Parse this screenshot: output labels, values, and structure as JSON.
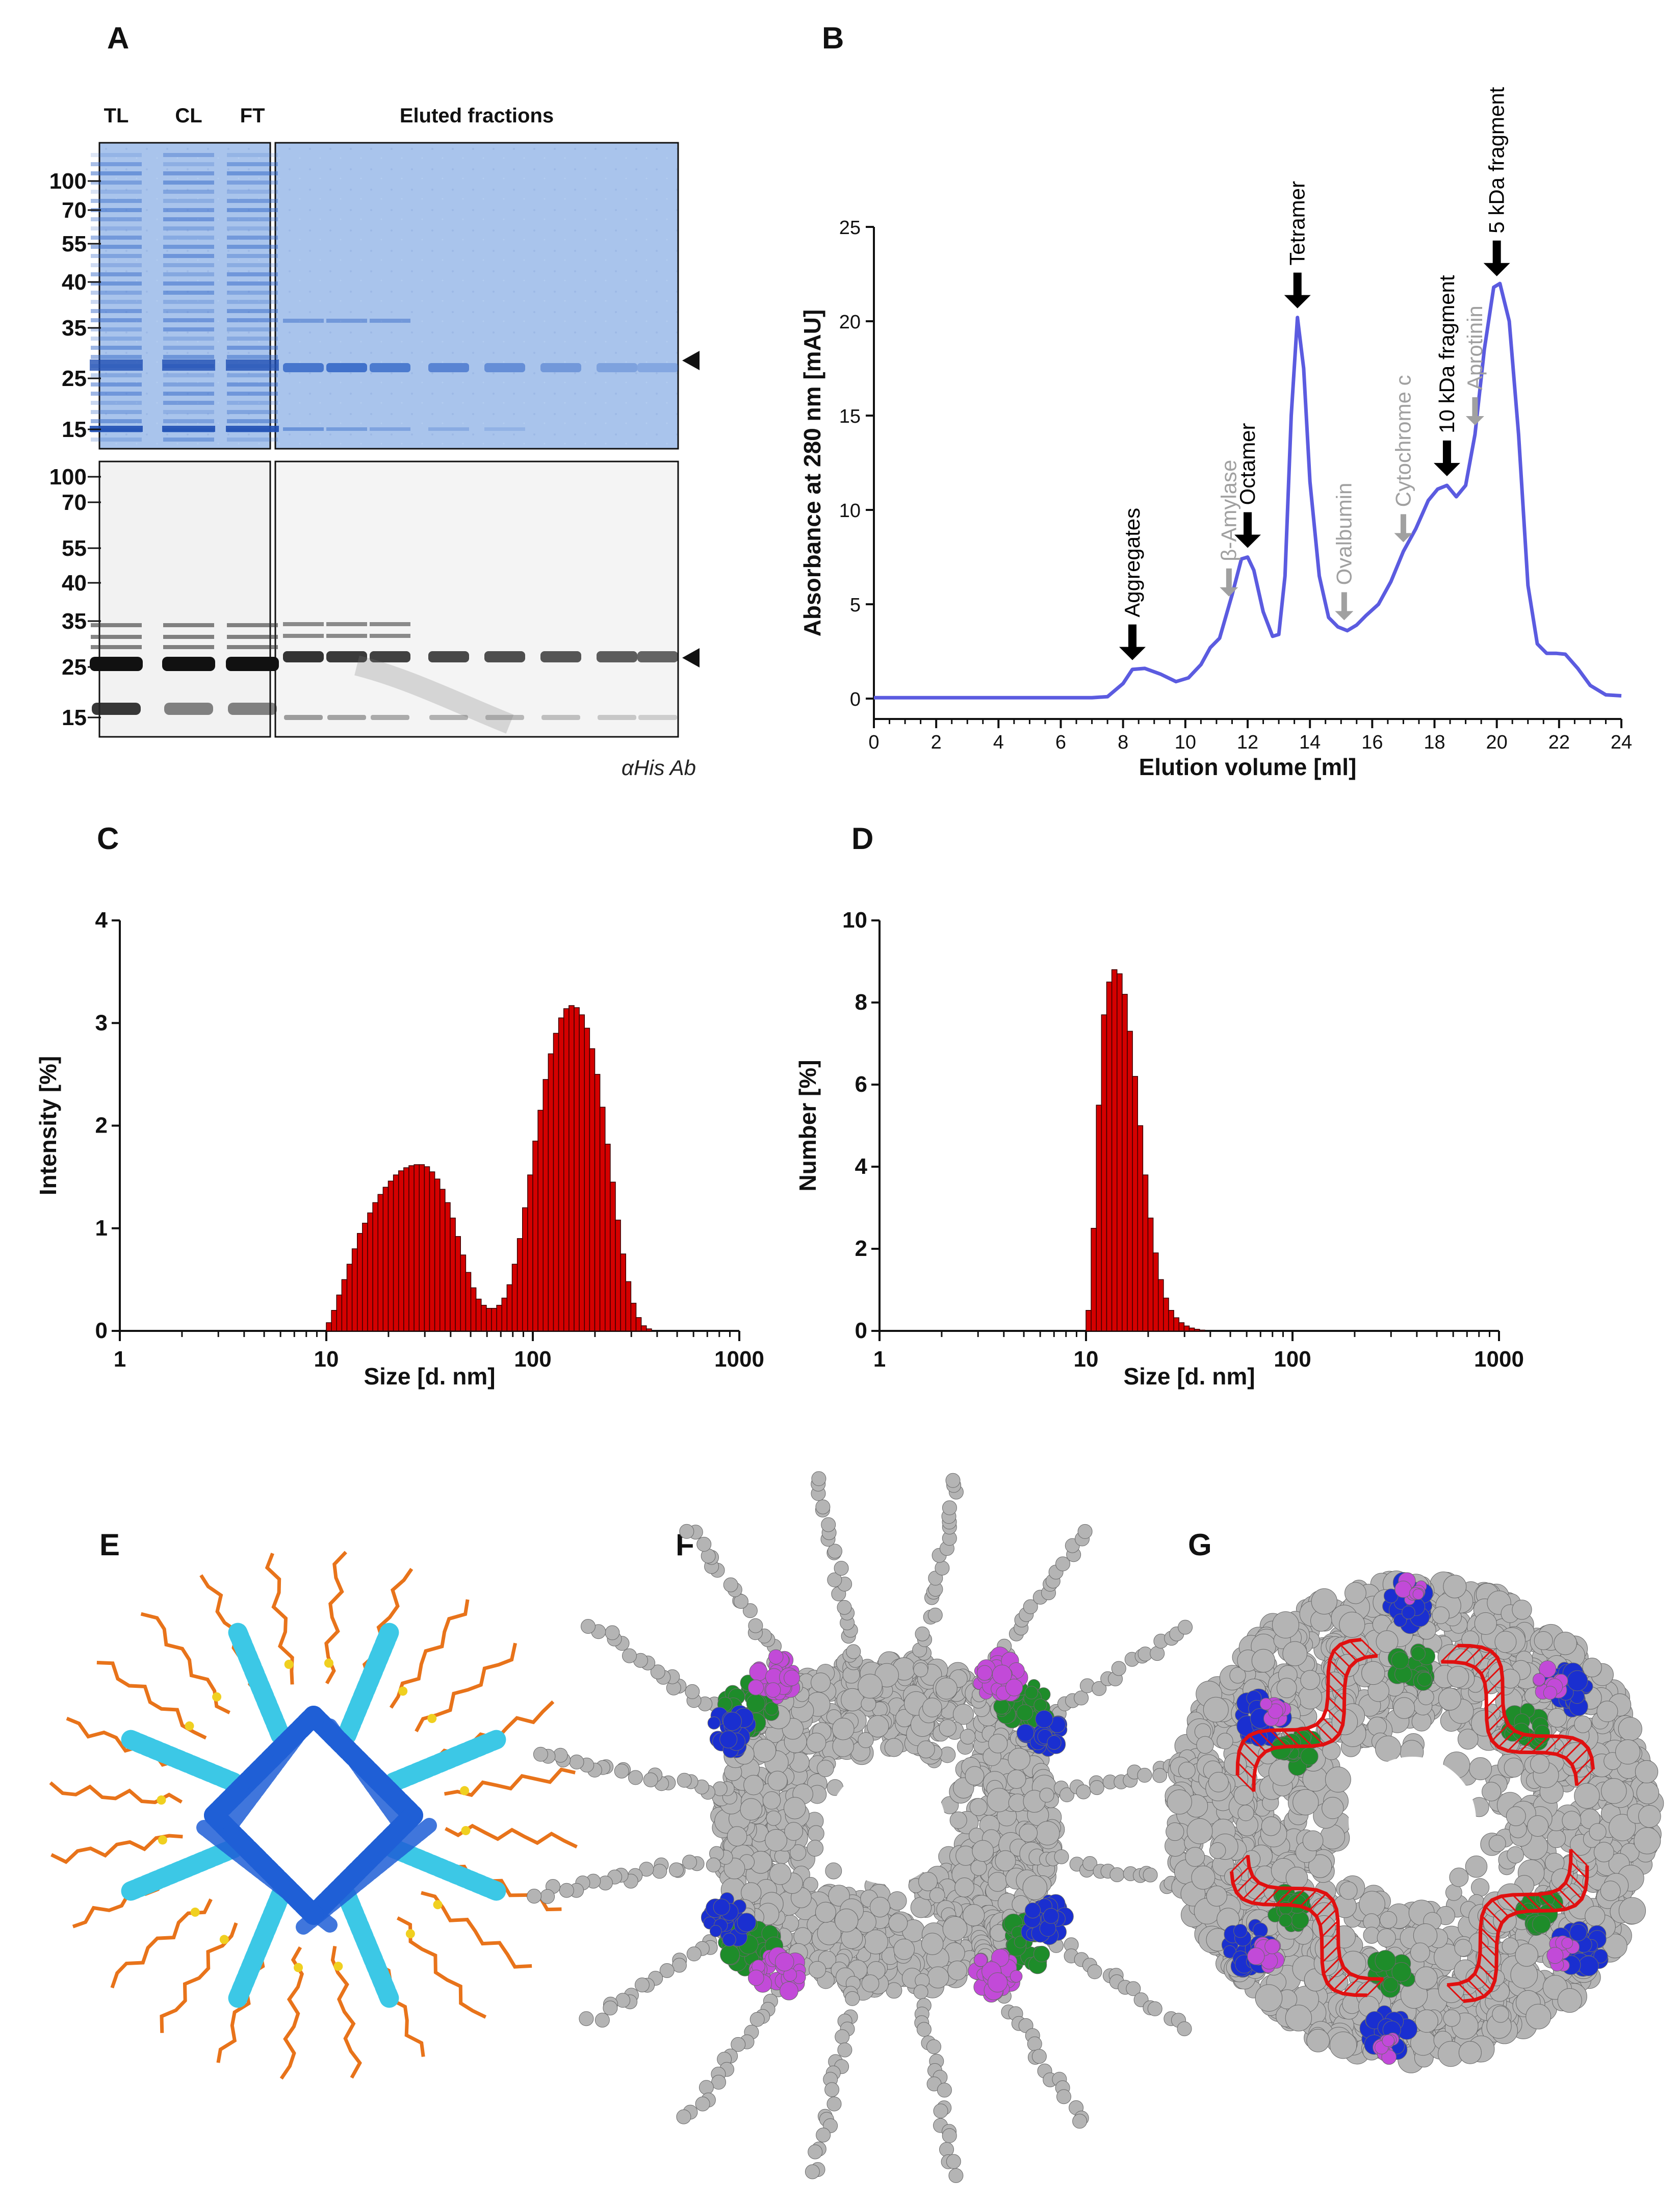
{
  "panels": {
    "A": {
      "label": "A",
      "lanes": [
        "TL",
        "CL",
        "FT"
      ],
      "eluted_label": "Eluted fractions",
      "mw_top": [
        "100",
        "70",
        "55",
        "40",
        "35",
        "25",
        "15"
      ],
      "mw_bottom": [
        "100",
        "70",
        "55",
        "40",
        "35",
        "25",
        "15"
      ],
      "western_caption": "αHis Ab"
    },
    "B": {
      "label": "B"
    },
    "C": {
      "label": "C"
    },
    "D": {
      "label": "D"
    },
    "E": {
      "label": "E"
    },
    "F": {
      "label": "F"
    },
    "G": {
      "label": "G"
    }
  },
  "colors": {
    "trace": "#5b5be0",
    "hist": "#d40000",
    "black_arrow": "#000000",
    "gray_arrow": "#a0a0a0",
    "gel_blue": "#a9c4ec",
    "band_blue": "#2e63c6",
    "helix_dark": "#1f5fd6",
    "helix_cyan": "#3cc8e6",
    "coil_orange": "#e8731a",
    "atom_gray": "#b4b4b4",
    "atom_blue": "#1a2fd0",
    "atom_green": "#1e8c2a",
    "atom_magenta": "#c24ad8",
    "rna_red": "#e01010"
  },
  "chart_data": [
    {
      "panel": "B",
      "type": "line",
      "xlabel": "Elution volume [ml]",
      "ylabel": "Absorbance at 280 nm [mAU]",
      "xlim": [
        0,
        24
      ],
      "ylim": [
        0,
        25
      ],
      "xticks": [
        "0",
        "2",
        "4",
        "6",
        "8",
        "10",
        "12",
        "14",
        "16",
        "18",
        "20",
        "22",
        "24"
      ],
      "yticks": [
        "0",
        "5",
        "10",
        "15",
        "20",
        "25"
      ],
      "series": [
        {
          "name": "A280",
          "x": [
            0,
            7,
            7.5,
            8,
            8.3,
            8.7,
            9.2,
            9.7,
            10.1,
            10.5,
            10.8,
            11.1,
            11.5,
            11.8,
            12.0,
            12.2,
            12.5,
            12.8,
            13.0,
            13.2,
            13.4,
            13.6,
            13.8,
            14.0,
            14.3,
            14.6,
            14.9,
            15.2,
            15.5,
            15.8,
            16.2,
            16.6,
            17.0,
            17.4,
            17.8,
            18.1,
            18.4,
            18.7,
            19.0,
            19.3,
            19.6,
            19.9,
            20.1,
            20.4,
            20.7,
            21.0,
            21.3,
            21.6,
            21.9,
            22.2,
            22.6,
            23.0,
            23.5,
            24.0
          ],
          "y": [
            0.05,
            0.05,
            0.1,
            0.8,
            1.55,
            1.6,
            1.3,
            0.9,
            1.1,
            1.8,
            2.7,
            3.2,
            5.5,
            7.4,
            7.5,
            6.8,
            4.6,
            3.3,
            3.4,
            6.5,
            15.0,
            20.2,
            17.5,
            11.5,
            6.5,
            4.3,
            3.8,
            3.6,
            3.9,
            4.4,
            5.0,
            6.2,
            7.8,
            9.0,
            10.5,
            11.1,
            11.3,
            10.7,
            11.3,
            14.0,
            18.5,
            21.8,
            22.0,
            20.0,
            14.0,
            6.0,
            2.9,
            2.4,
            2.4,
            2.35,
            1.6,
            0.7,
            0.2,
            0.15
          ]
        }
      ],
      "annotations": [
        {
          "text": "Aggregates",
          "x": 8.3,
          "color": "black"
        },
        {
          "text": "β-Amylase",
          "x": 11.4,
          "color": "gray"
        },
        {
          "text": "Octamer",
          "x": 12.0,
          "color": "black"
        },
        {
          "text": "Tetramer",
          "x": 13.6,
          "color": "black"
        },
        {
          "text": "Ovalbumin",
          "x": 15.1,
          "color": "gray"
        },
        {
          "text": "Cytochrome c",
          "x": 17.0,
          "color": "gray"
        },
        {
          "text": "10 kDa fragment",
          "x": 18.4,
          "color": "black"
        },
        {
          "text": "Aprotinin",
          "x": 19.3,
          "color": "gray"
        },
        {
          "text": "5 kDa fragment",
          "x": 20.0,
          "color": "black"
        }
      ]
    },
    {
      "panel": "C",
      "type": "bar",
      "xscale": "log",
      "xlabel": "Size [d. nm]",
      "ylabel": "Intensity [%]",
      "xlim": [
        1,
        1000
      ],
      "ylim": [
        0,
        4
      ],
      "xticks": [
        "1",
        "10",
        "100",
        "1000"
      ],
      "yticks": [
        "0",
        "1",
        "2",
        "3",
        "4"
      ],
      "bin_start": 10,
      "bins_per_decade": 40,
      "values": [
        0.08,
        0.2,
        0.35,
        0.5,
        0.65,
        0.8,
        0.95,
        1.05,
        1.15,
        1.25,
        1.33,
        1.4,
        1.46,
        1.52,
        1.56,
        1.59,
        1.61,
        1.62,
        1.62,
        1.6,
        1.55,
        1.48,
        1.38,
        1.25,
        1.1,
        0.92,
        0.74,
        0.57,
        0.42,
        0.31,
        0.25,
        0.22,
        0.22,
        0.25,
        0.32,
        0.45,
        0.65,
        0.9,
        1.2,
        1.52,
        1.85,
        2.15,
        2.45,
        2.7,
        2.9,
        3.05,
        3.14,
        3.17,
        3.15,
        3.08,
        2.95,
        2.75,
        2.5,
        2.18,
        1.82,
        1.45,
        1.08,
        0.75,
        0.48,
        0.27,
        0.13,
        0.05,
        0.02
      ]
    },
    {
      "panel": "D",
      "type": "bar",
      "xscale": "log",
      "xlabel": "Size [d. nm]",
      "ylabel": "Number [%]",
      "xlim": [
        1,
        1000
      ],
      "ylim": [
        0,
        10
      ],
      "xticks": [
        "1",
        "10",
        "100",
        "1000"
      ],
      "yticks": [
        "0",
        "2",
        "4",
        "6",
        "8",
        "10"
      ],
      "bin_start": 10,
      "bins_per_decade": 40,
      "values": [
        0.5,
        2.5,
        5.5,
        7.7,
        8.5,
        8.8,
        8.7,
        8.2,
        7.3,
        6.2,
        5.0,
        3.8,
        2.75,
        1.9,
        1.25,
        0.8,
        0.5,
        0.32,
        0.2,
        0.12,
        0.07,
        0.04,
        0.02
      ]
    }
  ]
}
